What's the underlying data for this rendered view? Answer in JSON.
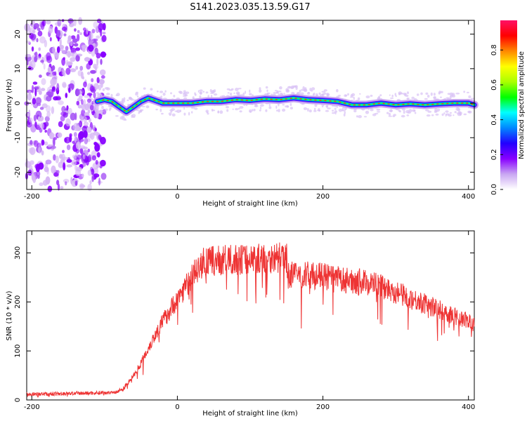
{
  "title": "S141.2023.035.13.59.G17",
  "chart_data": [
    {
      "type": "heatmap",
      "xlabel": "Height of straight line (km)",
      "ylabel": "Frequency (Hz)",
      "xlim": [
        -207,
        408
      ],
      "ylim": [
        -25,
        24
      ],
      "xticks": [
        -200,
        0,
        200,
        400
      ],
      "xtick_labels": [
        "-200",
        "0",
        "200",
        "400"
      ],
      "yticks": [
        -20,
        -10,
        0,
        10,
        20
      ],
      "ytick_labels": [
        "-20",
        "-10",
        "0",
        "10",
        "20"
      ],
      "colorbar": {
        "label": "Normalized spectral amplitude",
        "range": [
          0,
          0.97
        ],
        "ticks": [
          0.0,
          0.2,
          0.4,
          0.6,
          0.8
        ],
        "tick_labels": [
          "0.0",
          "0.2",
          "0.4",
          "0.6",
          "0.8"
        ],
        "colors": [
          "#ffffff",
          "#c9a6f2",
          "#8800ff",
          "#2200ff",
          "#0088ff",
          "#00ffff",
          "#00ff00",
          "#aaff00",
          "#ffff00",
          "#ff8800",
          "#ff0000",
          "#ff1166"
        ]
      },
      "noise_region_x": [
        -207,
        -100
      ],
      "frequency_trace": {
        "x": [
          -110,
          -100,
          -90,
          -80,
          -70,
          -60,
          -50,
          -40,
          -20,
          0,
          20,
          40,
          60,
          80,
          100,
          120,
          140,
          160,
          180,
          200,
          220,
          240,
          260,
          280,
          300,
          320,
          340,
          360,
          380,
          400,
          408
        ],
        "y": [
          0.5,
          1.0,
          0.5,
          -1.0,
          -2.5,
          -1.0,
          0.5,
          1.5,
          0.0,
          0.0,
          0.0,
          0.5,
          0.5,
          1.0,
          0.8,
          1.2,
          1.0,
          1.5,
          1.0,
          0.8,
          0.5,
          -0.5,
          -0.5,
          0.0,
          -0.5,
          -0.2,
          -0.5,
          -0.2,
          0.0,
          0.0,
          -0.5
        ]
      }
    },
    {
      "type": "line",
      "xlabel": "Height of straight line (km)",
      "ylabel": "SNR (10 * v/v)",
      "xlim": [
        -207,
        408
      ],
      "ylim": [
        0,
        345
      ],
      "xticks": [
        -200,
        0,
        200,
        400
      ],
      "xtick_labels": [
        "-200",
        "0",
        "200",
        "400"
      ],
      "yticks": [
        0,
        100,
        200,
        300
      ],
      "ytick_labels": [
        "0",
        "100",
        "200",
        "300"
      ],
      "series": [
        {
          "color": "#ee3333",
          "x": [
            -207,
            -180,
            -150,
            -120,
            -100,
            -85,
            -75,
            -65,
            -55,
            -45,
            -35,
            -25,
            -15,
            -5,
            5,
            15,
            25,
            35,
            50,
            75,
            100,
            125,
            150,
            152,
            175,
            200,
            225,
            250,
            275,
            300,
            325,
            350,
            375,
            400,
            408
          ],
          "y": [
            12,
            12,
            13,
            14,
            15,
            16,
            22,
            40,
            62,
            90,
            120,
            148,
            172,
            195,
            218,
            240,
            262,
            280,
            283,
            286,
            288,
            290,
            290,
            255,
            255,
            252,
            245,
            242,
            236,
            220,
            205,
            190,
            175,
            160,
            155
          ]
        }
      ]
    }
  ]
}
